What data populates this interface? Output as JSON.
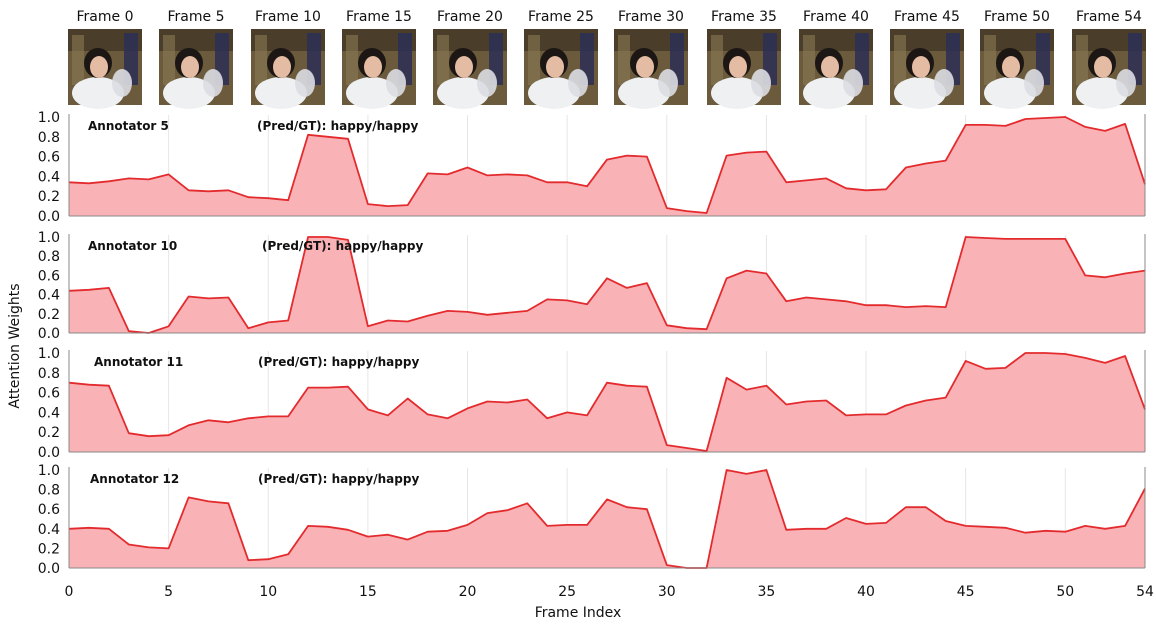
{
  "thumbnails": [
    {
      "label": "Frame 0"
    },
    {
      "label": "Frame 5"
    },
    {
      "label": "Frame 10"
    },
    {
      "label": "Frame 15"
    },
    {
      "label": "Frame 20"
    },
    {
      "label": "Frame 25"
    },
    {
      "label": "Frame 30"
    },
    {
      "label": "Frame 35"
    },
    {
      "label": "Frame 40"
    },
    {
      "label": "Frame 45"
    },
    {
      "label": "Frame 50"
    },
    {
      "label": "Frame 54"
    }
  ],
  "colors": {
    "fill": "#f9b3b6",
    "line": "#e32b2e",
    "grid": "#e6e6e6",
    "axis": "#888888"
  },
  "chart_data": {
    "type": "area",
    "xlabel": "Frame Index",
    "ylabel": "Attention Weights",
    "xlim": [
      0,
      54
    ],
    "ylim": [
      0,
      1.0
    ],
    "x_ticks": [
      0,
      5,
      10,
      15,
      20,
      25,
      30,
      35,
      40,
      45,
      50,
      54
    ],
    "y_ticks": [
      "0.0",
      "0.2",
      "0.4",
      "0.6",
      "0.8",
      "1.0"
    ],
    "grid": true,
    "panels": [
      {
        "name": "Annotator 5",
        "annotation": "(Pred/GT): happy/happy",
        "values": [
          0.34,
          0.33,
          0.35,
          0.38,
          0.37,
          0.42,
          0.26,
          0.25,
          0.26,
          0.19,
          0.18,
          0.16,
          0.82,
          0.8,
          0.78,
          0.12,
          0.1,
          0.11,
          0.43,
          0.42,
          0.49,
          0.41,
          0.42,
          0.41,
          0.34,
          0.34,
          0.3,
          0.57,
          0.61,
          0.6,
          0.08,
          0.05,
          0.03,
          0.61,
          0.64,
          0.65,
          0.34,
          0.36,
          0.38,
          0.28,
          0.26,
          0.27,
          0.49,
          0.53,
          0.56,
          0.92,
          0.92,
          0.91,
          0.98,
          0.99,
          1.0,
          0.9,
          0.86,
          0.93,
          0.32
        ]
      },
      {
        "name": "Annotator 10",
        "annotation": "(Pred/GT): happy/happy",
        "values": [
          0.44,
          0.45,
          0.47,
          0.02,
          0.0,
          0.07,
          0.38,
          0.36,
          0.37,
          0.05,
          0.11,
          0.13,
          1.0,
          1.0,
          0.97,
          0.07,
          0.13,
          0.12,
          0.18,
          0.23,
          0.22,
          0.19,
          0.21,
          0.23,
          0.35,
          0.34,
          0.3,
          0.57,
          0.47,
          0.52,
          0.08,
          0.05,
          0.04,
          0.57,
          0.65,
          0.62,
          0.33,
          0.37,
          0.35,
          0.33,
          0.29,
          0.29,
          0.27,
          0.28,
          0.27,
          1.0,
          0.99,
          0.98,
          0.98,
          0.98,
          0.98,
          0.6,
          0.58,
          0.62,
          0.65
        ]
      },
      {
        "name": "Annotator 11",
        "annotation": "(Pred/GT): happy/happy",
        "values": [
          0.7,
          0.68,
          0.67,
          0.19,
          0.16,
          0.17,
          0.27,
          0.32,
          0.3,
          0.34,
          0.36,
          0.36,
          0.65,
          0.65,
          0.66,
          0.43,
          0.37,
          0.54,
          0.38,
          0.34,
          0.44,
          0.51,
          0.5,
          0.53,
          0.34,
          0.4,
          0.37,
          0.7,
          0.67,
          0.66,
          0.07,
          0.04,
          0.01,
          0.75,
          0.63,
          0.67,
          0.48,
          0.51,
          0.52,
          0.37,
          0.38,
          0.38,
          0.47,
          0.52,
          0.55,
          0.92,
          0.84,
          0.85,
          1.0,
          1.0,
          0.99,
          0.95,
          0.9,
          0.97,
          0.43
        ]
      },
      {
        "name": "Annotator 12",
        "annotation": "(Pred/GT): happy/happy",
        "values": [
          0.4,
          0.41,
          0.4,
          0.24,
          0.21,
          0.2,
          0.72,
          0.68,
          0.66,
          0.08,
          0.09,
          0.14,
          0.43,
          0.42,
          0.39,
          0.32,
          0.34,
          0.29,
          0.37,
          0.38,
          0.44,
          0.56,
          0.59,
          0.66,
          0.43,
          0.44,
          0.44,
          0.7,
          0.62,
          0.6,
          0.03,
          0.0,
          0.0,
          1.0,
          0.96,
          1.0,
          0.39,
          0.4,
          0.4,
          0.51,
          0.45,
          0.46,
          0.62,
          0.62,
          0.48,
          0.43,
          0.42,
          0.41,
          0.36,
          0.38,
          0.37,
          0.43,
          0.4,
          0.43,
          0.81
        ]
      }
    ]
  }
}
